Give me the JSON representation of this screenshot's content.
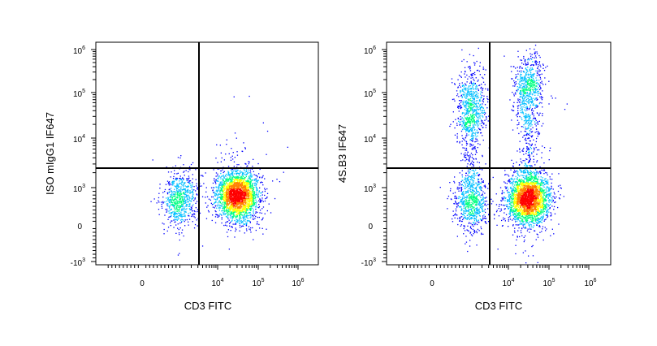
{
  "chart_data": [
    {
      "type": "scatter",
      "subtype": "flow-cytometry-density-dot-plot",
      "xlabel": "CD3 FITC",
      "ylabel": "ISO mIgG1 IF647",
      "x_scale": "biexponential",
      "y_scale": "biexponential",
      "x_tick_labels": [
        {
          "base": "0",
          "exp": ""
        },
        {
          "base": "10",
          "exp": "4"
        },
        {
          "base": "10",
          "exp": "5"
        },
        {
          "base": "10",
          "exp": "6"
        }
      ],
      "y_tick_labels": [
        {
          "base": "10",
          "exp": "6"
        },
        {
          "base": "10",
          "exp": "5"
        },
        {
          "base": "10",
          "exp": "4"
        },
        {
          "base": "10",
          "exp": "3"
        },
        {
          "base": "0",
          "exp": ""
        },
        {
          "base": "-10",
          "exp": "3"
        }
      ],
      "quadrant_gate": {
        "x": 4200,
        "y": 2300
      },
      "populations": [
        {
          "x": 1000,
          "y": 700,
          "density": "medium"
        },
        {
          "x": 30000,
          "y": 800,
          "density": "high"
        }
      ],
      "colormap": [
        "#0000ff",
        "#00bfff",
        "#00ff80",
        "#ffff00",
        "#ff8000",
        "#ff0000"
      ]
    },
    {
      "type": "scatter",
      "subtype": "flow-cytometry-density-dot-plot",
      "xlabel": "CD3 FITC",
      "ylabel": "4S.B3 IF647",
      "x_scale": "biexponential",
      "y_scale": "biexponential",
      "x_tick_labels": [
        {
          "base": "0",
          "exp": ""
        },
        {
          "base": "10",
          "exp": "4"
        },
        {
          "base": "10",
          "exp": "5"
        },
        {
          "base": "10",
          "exp": "6"
        }
      ],
      "y_tick_labels": [
        {
          "base": "10",
          "exp": "6"
        },
        {
          "base": "10",
          "exp": "5"
        },
        {
          "base": "10",
          "exp": "4"
        },
        {
          "base": "10",
          "exp": "3"
        },
        {
          "base": "0",
          "exp": ""
        },
        {
          "base": "-10",
          "exp": "3"
        }
      ],
      "quadrant_gate": {
        "x": 4200,
        "y": 2300
      },
      "populations": [
        {
          "x": 1000,
          "y": 600,
          "density": "medium"
        },
        {
          "x": 1000,
          "y": 50000,
          "density": "medium"
        },
        {
          "x": 30000,
          "y": 700,
          "density": "high"
        },
        {
          "x": 30000,
          "y": 120000,
          "density": "medium"
        }
      ],
      "colormap": [
        "#0000ff",
        "#00bfff",
        "#00ff80",
        "#ffff00",
        "#ff8000",
        "#ff0000"
      ]
    }
  ]
}
